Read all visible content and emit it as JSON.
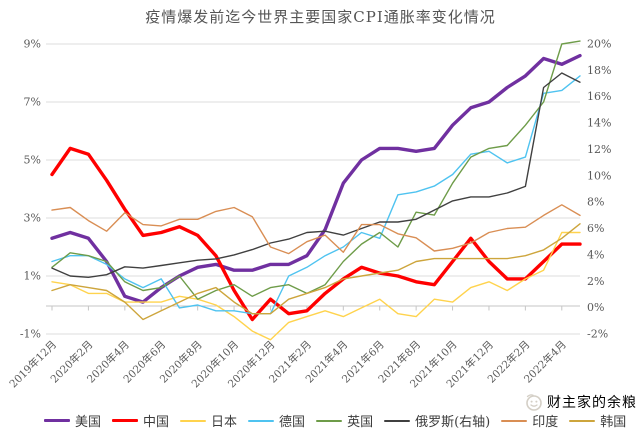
{
  "title": "疫情爆发前迄今世界主要国家CPI通胀率变化情况",
  "watermark": {
    "text": "财主家的余粮",
    "icon": "smiley-face-icon",
    "color": "#d4cfc6"
  },
  "colors": {
    "grid": "#dedede",
    "axis_line": "#c6c6c6",
    "tick_text": "#595959",
    "title_text": "#555555",
    "legend_text": "#3d3d3d",
    "background": "#ffffff"
  },
  "chart_data": {
    "type": "line",
    "title": "疫情爆发前迄今世界主要国家CPI通胀率变化情况",
    "x_interval": "monthly",
    "x_range": [
      "2019年12月",
      "2022年5月"
    ],
    "x_tick_labels": [
      "2019年12月",
      "2020年2月",
      "2020年4月",
      "2020年6月",
      "2020年8月",
      "2020年10月",
      "2020年12月",
      "2021年2月",
      "2021年4月",
      "2021年6月",
      "2021年8月",
      "2021年10月",
      "2021年12月",
      "2022年2月",
      "2022年4月"
    ],
    "left_axis": {
      "min": -1,
      "max": 9,
      "tick_values": [
        9,
        7,
        5,
        3,
        1,
        -1
      ],
      "tick_labels": [
        "9%",
        "7%",
        "5%",
        "3%",
        "1%",
        "-1%"
      ]
    },
    "right_axis": {
      "min": -2,
      "max": 20,
      "tick_values": [
        20,
        18,
        16,
        14,
        12,
        10,
        8,
        6,
        4,
        2,
        0,
        -2
      ],
      "tick_labels": [
        "20%",
        "18%",
        "16%",
        "14%",
        "12%",
        "10%",
        "8%",
        "6%",
        "4%",
        "2%",
        "0%",
        "-2%"
      ]
    },
    "grid": "horizontal",
    "legend_position": "bottom",
    "series": [
      {
        "key": "us",
        "name": "美国",
        "axis": "left",
        "color": "#7030A0",
        "width": 3.4,
        "values": [
          2.3,
          2.5,
          2.3,
          1.5,
          0.3,
          0.1,
          0.6,
          1.0,
          1.3,
          1.4,
          1.2,
          1.2,
          1.4,
          1.4,
          1.7,
          2.6,
          4.2,
          5.0,
          5.4,
          5.4,
          5.3,
          5.4,
          6.2,
          6.8,
          7.0,
          7.5,
          7.9,
          8.5,
          8.3,
          8.6
        ]
      },
      {
        "key": "cn",
        "name": "中国",
        "axis": "left",
        "color": "#FF0000",
        "width": 3.4,
        "values": [
          4.5,
          5.4,
          5.2,
          4.3,
          3.3,
          2.4,
          2.5,
          2.7,
          2.4,
          1.7,
          0.5,
          -0.5,
          0.2,
          -0.3,
          -0.2,
          0.4,
          0.9,
          1.3,
          1.1,
          1.0,
          0.8,
          0.7,
          1.5,
          2.3,
          1.5,
          0.9,
          0.9,
          1.5,
          2.1,
          2.1
        ]
      },
      {
        "key": "jp",
        "name": "日本",
        "axis": "left",
        "color": "#FFD34D",
        "width": 1.4,
        "values": [
          0.8,
          0.7,
          0.4,
          0.4,
          0.1,
          0.1,
          0.1,
          0.3,
          0.2,
          0.0,
          -0.4,
          -0.9,
          -1.2,
          -0.6,
          -0.4,
          -0.2,
          -0.4,
          -0.1,
          0.2,
          -0.3,
          -0.4,
          0.2,
          0.1,
          0.6,
          0.8,
          0.5,
          0.9,
          1.2,
          2.5,
          2.5
        ]
      },
      {
        "key": "de",
        "name": "德国",
        "axis": "left",
        "color": "#4FC3F0",
        "width": 1.4,
        "values": [
          1.5,
          1.7,
          1.7,
          1.4,
          0.9,
          0.6,
          0.9,
          -0.1,
          0.0,
          -0.2,
          -0.2,
          -0.3,
          -0.3,
          1.0,
          1.3,
          1.7,
          2.0,
          2.5,
          2.3,
          3.8,
          3.9,
          4.1,
          4.5,
          5.2,
          5.3,
          4.9,
          5.1,
          7.3,
          7.4,
          7.9
        ]
      },
      {
        "key": "uk",
        "name": "英国",
        "axis": "left",
        "color": "#6E9C49",
        "width": 1.4,
        "values": [
          1.3,
          1.8,
          1.7,
          1.5,
          0.8,
          0.5,
          0.6,
          1.0,
          0.2,
          0.5,
          0.7,
          0.3,
          0.6,
          0.7,
          0.4,
          0.7,
          1.5,
          2.1,
          2.5,
          2.0,
          3.2,
          3.1,
          4.2,
          5.1,
          5.4,
          5.5,
          6.2,
          7.0,
          9.0,
          9.1
        ]
      },
      {
        "key": "ru",
        "name": "俄罗斯(右轴)",
        "axis": "right",
        "color": "#404040",
        "width": 1.4,
        "values": [
          3.0,
          2.4,
          2.3,
          2.5,
          3.1,
          3.0,
          3.2,
          3.4,
          3.6,
          3.7,
          4.0,
          4.4,
          4.9,
          5.2,
          5.7,
          5.8,
          5.5,
          6.0,
          6.5,
          6.5,
          6.7,
          7.4,
          8.1,
          8.4,
          8.4,
          8.7,
          9.2,
          16.7,
          17.8,
          17.1
        ]
      },
      {
        "key": "in",
        "name": "印度",
        "axis": "right",
        "color": "#D98E54",
        "width": 1.4,
        "values": [
          7.4,
          7.6,
          6.6,
          5.8,
          7.2,
          6.3,
          6.2,
          6.7,
          6.7,
          7.3,
          7.6,
          6.9,
          4.6,
          4.1,
          5.0,
          5.5,
          4.2,
          6.3,
          6.3,
          5.6,
          5.3,
          4.3,
          4.5,
          4.9,
          5.7,
          6.0,
          6.1,
          7.0,
          7.8,
          7.0
        ]
      },
      {
        "key": "kr",
        "name": "韩国",
        "axis": "left",
        "color": "#CDA53C",
        "width": 1.4,
        "values": [
          0.5,
          0.7,
          0.6,
          0.5,
          0.1,
          -0.5,
          -0.2,
          0.1,
          0.4,
          0.6,
          0.1,
          -0.3,
          -0.3,
          0.2,
          0.4,
          0.6,
          0.9,
          1.0,
          1.1,
          1.2,
          1.5,
          1.6,
          1.6,
          1.6,
          1.6,
          1.6,
          1.7,
          1.9,
          2.3,
          2.8
        ]
      }
    ]
  }
}
